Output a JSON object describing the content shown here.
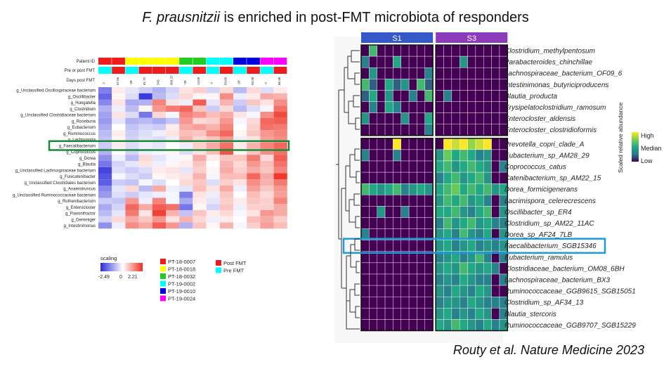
{
  "slide": {
    "title_species": "F. prausnitzii",
    "title_rest": " is enriched in post-FMT microbiota of responders",
    "citation": "Routy et al. Nature Medicine 2023"
  },
  "chart_data": [
    {
      "type": "heatmap",
      "title": "",
      "annotation_labels": [
        "Patient ID",
        "Pre or post FMT",
        "Days post FMT"
      ],
      "days_post_fmt": [
        "-7",
        "67.66",
        "-28",
        "61.72",
        "343",
        "456.27",
        "-28",
        "14.09",
        "-7",
        "83.89",
        "-28",
        "93.38",
        "-7",
        "86.48"
      ],
      "patients": [
        "PT-18-0007",
        "PT-18-0018",
        "PT-18-0032",
        "PT-19-0002",
        "PT-19-0010",
        "PT-19-0024"
      ],
      "patient_colors": [
        "#ee1c1c",
        "#ffff00",
        "#22cc22",
        "#00ffff",
        "#0000dd",
        "#ff00ff"
      ],
      "column_patient_index": [
        0,
        0,
        1,
        1,
        1,
        1,
        2,
        2,
        3,
        3,
        4,
        4,
        5,
        5
      ],
      "column_fmt_state": [
        "pre",
        "post",
        "pre",
        "post",
        "post",
        "post",
        "pre",
        "post",
        "pre",
        "post",
        "pre",
        "post",
        "pre",
        "post"
      ],
      "fmt_legend": [
        {
          "label": "Post FMT",
          "color": "#ee1c1c"
        },
        {
          "label": "Pre FMT",
          "color": "#00ffff"
        }
      ],
      "rows": [
        "g_Unclassified Oscillospiraceae bacterium",
        "g_Oscillibacter",
        "g_Hungatella",
        "g_Clostridium",
        "g_Unclassified Clostridiaceae bacterium",
        "g_Roseburia",
        "g_Eubacterium",
        "g_Ruminococcus",
        "g_Lachnospira",
        "g_Faecalibacterium",
        "g_Coprococcus",
        "g_Dorea",
        "g_Blautia",
        "g_Unclassified Lachnospiraceae bacterium",
        "g_Fusicatenibacter",
        "g_Unclassified Clostridiales bacterium",
        "g_Anaerotruncus",
        "g_Unclassified Ruminococcaceae bacterium",
        "g_Ruthenibacterium",
        "g_Enterocloster",
        "g_Flavonifractor",
        "g_Gemmiger",
        "g_Intestinimonas"
      ],
      "highlighted_row": "g_Faecalibacterium",
      "values": [
        [
          -1.5,
          0.2,
          -0.3,
          -0.6,
          -0.9,
          -0.5,
          0.3,
          0.5,
          -0.5,
          0.4,
          -0.8,
          0.4,
          -0.4,
          0.2
        ],
        [
          -1.8,
          0.1,
          -0.4,
          -2.3,
          -0.8,
          -0.4,
          0.4,
          0.1,
          0.1,
          1.2,
          -0.2,
          0.2,
          0.9,
          0.8
        ],
        [
          -1.4,
          0.3,
          -1.0,
          -0.9,
          1.3,
          0.3,
          -0.2,
          1.7,
          -0.3,
          0.8,
          -0.6,
          0.6,
          0.3,
          1.2
        ],
        [
          -0.9,
          -0.2,
          -0.8,
          0.1,
          1.1,
          1.4,
          1.6,
          0.6,
          -0.6,
          0.4,
          -0.8,
          -0.4,
          -0.1,
          1.5
        ],
        [
          -1.1,
          0.3,
          -0.4,
          -1.6,
          0.4,
          -0.1,
          1.3,
          1.1,
          0.7,
          0.9,
          0.3,
          -0.1,
          1.2,
          1.9
        ],
        [
          -1.2,
          -0.3,
          -0.9,
          -0.8,
          -1.0,
          -0.7,
          1.1,
          0.4,
          0.5,
          1.1,
          -0.1,
          0.4,
          1.6,
          1.7
        ],
        [
          -1.0,
          0.0,
          -0.7,
          -0.5,
          -0.6,
          0.2,
          0.9,
          1.0,
          0.8,
          1.3,
          0.0,
          0.5,
          1.5,
          1.4
        ],
        [
          -0.8,
          0.2,
          -0.6,
          -0.4,
          -0.2,
          0.3,
          0.7,
          0.6,
          1.2,
          1.6,
          0.1,
          0.6,
          1.1,
          1.3
        ],
        [
          -0.7,
          0.1,
          -0.5,
          -0.3,
          -0.4,
          -0.2,
          0.8,
          0.4,
          0.6,
          1.1,
          -0.2,
          0.3,
          1.0,
          1.2
        ],
        [
          -0.6,
          0.2,
          -0.4,
          -0.2,
          -0.3,
          0.0,
          -0.2,
          0.5,
          0.9,
          1.5,
          0.2,
          0.8,
          1.3,
          1.6
        ],
        [
          -0.9,
          0.0,
          -0.5,
          -0.2,
          -0.1,
          0.1,
          -0.4,
          0.3,
          0.7,
          1.8,
          0.1,
          0.6,
          1.2,
          1.5
        ],
        [
          -1.3,
          -0.2,
          -0.8,
          0.4,
          -0.3,
          -0.1,
          0.1,
          0.9,
          0.2,
          0.6,
          0.6,
          1.4,
          0.4,
          1.7
        ],
        [
          -1.6,
          -0.5,
          -0.3,
          0.3,
          -0.2,
          0.1,
          0.2,
          0.6,
          0.0,
          0.8,
          0.4,
          1.1,
          0.7,
          1.5
        ],
        [
          -2.2,
          -0.4,
          -0.6,
          -0.4,
          0.2,
          0.3,
          -0.3,
          0.5,
          0.1,
          0.9,
          0.5,
          0.9,
          0.6,
          1.3
        ],
        [
          -2.0,
          -0.1,
          -0.4,
          -0.6,
          0.1,
          0.2,
          0.3,
          0.8,
          -0.1,
          0.7,
          0.7,
          1.6,
          0.9,
          2.1
        ],
        [
          -1.9,
          -0.6,
          -0.7,
          -0.1,
          -0.4,
          0.0,
          0.4,
          0.6,
          -0.4,
          0.5,
          0.3,
          1.2,
          0.8,
          1.4
        ],
        [
          -1.4,
          -0.3,
          0.4,
          -0.8,
          0.9,
          -0.2,
          -0.3,
          0.7,
          0.3,
          0.9,
          -0.2,
          1.0,
          0.6,
          1.1
        ],
        [
          -1.2,
          -0.4,
          -0.6,
          -0.3,
          -0.2,
          -0.1,
          -1.5,
          0.3,
          -0.2,
          0.6,
          0.0,
          0.7,
          0.4,
          1.0
        ],
        [
          -0.6,
          -0.7,
          1.1,
          -0.2,
          1.3,
          -0.1,
          -1.0,
          0.2,
          -0.3,
          0.5,
          0.2,
          0.6,
          0.5,
          1.3
        ],
        [
          -1.0,
          -0.5,
          1.6,
          0.9,
          1.7,
          1.5,
          -1.6,
          0.1,
          -0.5,
          0.6,
          -0.2,
          0.5,
          0.5,
          0.9
        ],
        [
          -0.8,
          -0.3,
          1.4,
          0.3,
          2.0,
          0.8,
          -0.7,
          0.6,
          0.2,
          0.4,
          -0.1,
          0.3,
          1.1,
          0.9
        ],
        [
          -0.5,
          0.4,
          0.9,
          0.6,
          1.1,
          0.3,
          0.8,
          0.4,
          -0.2,
          0.2,
          0.0,
          0.7,
          0.9,
          0.5
        ],
        [
          -1.3,
          -0.2,
          1.2,
          0.9,
          1.7,
          1.1,
          -0.9,
          0.6,
          0.1,
          0.8,
          -0.1,
          0.5,
          1.0,
          0.7
        ]
      ],
      "legend": {
        "title": "scaling",
        "min_label": "-2.49",
        "mid_label": "0",
        "max_label": "2.21",
        "min": -2.49,
        "max": 2.21,
        "low_color": "#2b2bdd",
        "mid_color": "#ffffff",
        "high_color": "#ee2e1f"
      }
    },
    {
      "type": "heatmap",
      "groups": [
        {
          "label": "S1",
          "color": "#3559c8",
          "n_columns": 9
        },
        {
          "label": "S3",
          "color": "#8c3cb8",
          "n_columns": 9
        }
      ],
      "rows": [
        "Clostridium_methylpentosum",
        "Parabacteroides_chinchillae",
        "Lachnospiraceae_bacterium_OF09_6",
        "Intestinimonas_butyriciproducens",
        "Blautia_producta",
        "Erysipelatoclostridium_ramosum",
        "Enterocloster_aldensis",
        "Enterocloster_clostridioformis",
        "Prevotella_copri_clade_A",
        "Eubacterium_sp_AM28_29",
        "Coprococcus_catus",
        "Catenibacterium_sp_AM22_15",
        "Dorea_formicigenerans",
        "Lacrimispora_celerecrescens",
        "Oscillibacter_sp_ER4",
        "Clostridium_sp_AM22_11AC",
        "Dorea_sp_AF24_7LB",
        "Faecalibacterium_SGB15346",
        "Eubacterium_ramulus",
        "Clostridiaceae_bacterium_OM08_6BH",
        "Lachnospiraceae_bacterium_BX3",
        "Ruminococcaceae_GGB9615_SGB15051",
        "Clostridium_sp_AF34_13",
        "Blautia_stercoris",
        "Ruminococcaceae_GGB9707_SGB15229"
      ],
      "row_blocks": [
        8,
        17
      ],
      "highlighted_row": "Faecalibacterium_SGB15346",
      "values": [
        [
          0.0,
          0.6,
          0.0,
          0.0,
          0.0,
          0.0,
          0.0,
          0.0,
          0.0,
          0.0,
          0.0,
          0.0,
          0.0,
          0.0,
          0.0,
          0.0,
          0.0,
          0.0
        ],
        [
          0.3,
          0.0,
          0.0,
          0.0,
          0.5,
          0.0,
          0.0,
          0.0,
          0.0,
          0.0,
          0.0,
          0.0,
          0.4,
          0.0,
          0.0,
          0.0,
          0.0,
          0.0
        ],
        [
          0.0,
          0.4,
          0.0,
          0.0,
          0.0,
          0.0,
          0.0,
          0.0,
          0.3,
          0.0,
          0.0,
          0.0,
          0.0,
          0.0,
          0.0,
          0.0,
          0.0,
          0.0
        ],
        [
          0.6,
          0.2,
          0.0,
          0.5,
          0.2,
          0.4,
          0.0,
          0.6,
          0.2,
          0.0,
          0.0,
          0.0,
          0.0,
          0.0,
          0.0,
          0.0,
          0.0,
          0.0
        ],
        [
          0.2,
          0.5,
          0.0,
          0.4,
          0.0,
          0.0,
          0.3,
          0.0,
          0.6,
          0.0,
          0.3,
          0.0,
          0.0,
          0.0,
          0.0,
          0.0,
          0.0,
          0.0
        ],
        [
          0.0,
          0.3,
          0.0,
          0.5,
          0.3,
          0.0,
          0.0,
          0.0,
          0.0,
          0.0,
          0.0,
          0.0,
          0.0,
          0.0,
          0.0,
          0.0,
          0.0,
          0.0
        ],
        [
          0.4,
          0.0,
          0.0,
          0.0,
          0.0,
          0.4,
          0.0,
          0.0,
          0.5,
          0.0,
          0.0,
          0.0,
          0.0,
          0.0,
          0.0,
          0.0,
          0.0,
          0.0
        ],
        [
          0.0,
          0.0,
          0.0,
          0.0,
          0.0,
          0.0,
          0.0,
          0.0,
          0.3,
          0.0,
          0.0,
          0.0,
          0.0,
          0.0,
          0.0,
          0.0,
          0.0,
          0.0
        ],
        [
          0.0,
          0.0,
          0.0,
          0.0,
          1.0,
          0.0,
          0.0,
          0.0,
          0.0,
          0.0,
          1.0,
          0.9,
          1.0,
          0.8,
          0.9,
          1.0,
          0.0,
          0.0
        ],
        [
          0.3,
          0.0,
          0.0,
          0.0,
          0.3,
          0.0,
          0.0,
          0.0,
          0.0,
          0.4,
          0.7,
          0.5,
          0.6,
          0.5,
          0.3,
          0.4,
          0.0,
          0.0
        ],
        [
          0.0,
          0.0,
          0.0,
          0.0,
          0.0,
          0.0,
          0.0,
          0.0,
          0.0,
          0.5,
          0.6,
          0.4,
          0.5,
          0.6,
          0.5,
          0.4,
          0.0,
          0.3
        ],
        [
          0.0,
          0.0,
          0.0,
          0.0,
          0.0,
          0.0,
          0.0,
          0.0,
          0.0,
          0.3,
          0.5,
          0.6,
          0.4,
          0.5,
          0.6,
          0.4,
          0.0,
          0.0
        ],
        [
          0.6,
          0.5,
          0.4,
          0.5,
          0.6,
          0.3,
          0.4,
          0.5,
          0.4,
          0.5,
          0.6,
          0.7,
          0.5,
          0.6,
          0.5,
          0.6,
          0.4,
          0.5
        ],
        [
          0.0,
          0.0,
          0.0,
          0.0,
          0.0,
          0.0,
          0.0,
          0.0,
          0.0,
          0.4,
          0.6,
          0.5,
          0.6,
          0.4,
          0.5,
          0.3,
          0.0,
          0.3
        ],
        [
          0.0,
          0.0,
          0.4,
          0.0,
          0.0,
          0.3,
          0.0,
          0.0,
          0.0,
          0.5,
          0.5,
          0.6,
          0.4,
          0.3,
          0.5,
          0.6,
          0.0,
          0.4
        ],
        [
          0.0,
          0.0,
          0.0,
          0.0,
          0.0,
          0.0,
          0.0,
          0.0,
          0.0,
          0.3,
          0.6,
          0.4,
          0.5,
          0.6,
          0.4,
          0.5,
          0.3,
          0.3
        ],
        [
          0.3,
          0.0,
          0.0,
          0.0,
          0.0,
          0.0,
          0.0,
          0.0,
          0.0,
          0.4,
          0.5,
          0.3,
          0.6,
          0.4,
          0.3,
          0.5,
          0.0,
          0.4
        ],
        [
          0.0,
          0.0,
          0.0,
          0.0,
          0.0,
          0.0,
          0.0,
          0.0,
          0.0,
          0.4,
          0.5,
          0.3,
          0.4,
          0.5,
          0.3,
          0.4,
          0.3,
          0.4
        ],
        [
          0.0,
          0.0,
          0.0,
          0.0,
          0.0,
          0.0,
          0.0,
          0.0,
          0.0,
          0.3,
          0.4,
          0.5,
          0.3,
          0.4,
          0.6,
          0.3,
          0.0,
          0.3
        ],
        [
          0.0,
          0.0,
          0.0,
          0.0,
          0.0,
          0.0,
          0.0,
          0.0,
          0.0,
          0.4,
          0.5,
          0.4,
          0.6,
          0.5,
          0.4,
          0.5,
          0.3,
          0.0
        ],
        [
          0.0,
          0.0,
          0.0,
          0.0,
          0.0,
          0.0,
          0.0,
          0.0,
          0.0,
          0.3,
          0.4,
          0.3,
          0.5,
          0.4,
          0.3,
          0.3,
          0.0,
          0.3
        ],
        [
          0.0,
          0.0,
          0.0,
          0.0,
          0.0,
          0.0,
          0.0,
          0.0,
          0.0,
          0.4,
          0.3,
          0.5,
          0.4,
          0.3,
          0.5,
          0.4,
          0.0,
          0.0
        ],
        [
          0.0,
          0.0,
          0.0,
          0.0,
          0.0,
          0.0,
          0.0,
          0.0,
          0.0,
          0.3,
          0.4,
          0.4,
          0.3,
          0.5,
          0.4,
          0.3,
          0.3,
          0.3
        ],
        [
          0.0,
          0.0,
          0.0,
          0.0,
          0.0,
          0.0,
          0.0,
          0.0,
          0.0,
          0.4,
          0.5,
          0.3,
          0.4,
          0.3,
          0.5,
          0.4,
          0.0,
          0.3
        ],
        [
          0.0,
          0.0,
          0.0,
          0.0,
          0.0,
          0.0,
          0.0,
          0.0,
          0.0,
          0.5,
          0.4,
          0.6,
          0.5,
          0.4,
          0.3,
          0.5,
          0.3,
          0.4
        ]
      ],
      "legend": {
        "title": "Scaled relative abundance",
        "labels": [
          "High",
          "Median",
          "Low"
        ],
        "colors": [
          "#440154",
          "#2a788e",
          "#22a884",
          "#7ad151",
          "#fde725"
        ]
      }
    }
  ]
}
